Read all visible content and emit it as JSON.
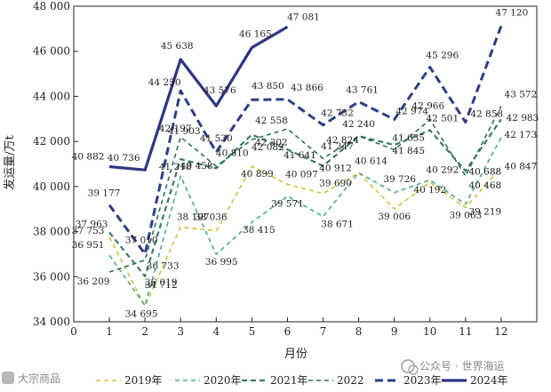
{
  "chart_data": {
    "type": "line",
    "title": "",
    "xlabel": "月份",
    "ylabel": "发运量/万t",
    "xlim": [
      0,
      13
    ],
    "ylim": [
      34000,
      48000
    ],
    "x_ticks": [
      0,
      1,
      2,
      3,
      4,
      5,
      6,
      7,
      8,
      9,
      10,
      11,
      12
    ],
    "y_ticks": [
      34000,
      36000,
      38000,
      40000,
      42000,
      44000,
      46000,
      48000
    ],
    "y_tick_labels": [
      "34 000",
      "36 000",
      "38 000",
      "40 000",
      "42 000",
      "44 000",
      "46 000",
      "48 000"
    ],
    "series": [
      {
        "name": "2019年",
        "color": "#c8c43a",
        "values": [
          37753,
          34695,
          38197,
          38036,
          40899,
          40097,
          39690,
          40614,
          39006,
          40192,
          39063,
          40847
        ],
        "labels": [
          "37 753",
          "34 695",
          "38 197",
          "38 036",
          "40 899",
          "40 097",
          "39 690",
          "40 614",
          "39 006",
          "40 192",
          "39 063",
          "40 847"
        ]
      },
      {
        "name": "2020年",
        "color": "#4caa86",
        "values": [
          36951,
          34712,
          40458,
          36995,
          38415,
          39571,
          38671,
          40614,
          39726,
          40292,
          39219,
          42173
        ],
        "labels": [
          "36 951",
          "34 712",
          "40 458",
          "36 995",
          "38 415",
          "39 571",
          "38 671",
          "",
          "39 726",
          "40 292",
          "39 219",
          "42 173"
        ]
      },
      {
        "name": "2021年",
        "color": "#3a7b63",
        "values": [
          37963,
          36019,
          41218,
          40810,
          42302,
          41641,
          40912,
          42240,
          41845,
          42501,
          40688,
          42983
        ],
        "labels": [
          "37 963",
          "36 019",
          "41 218",
          "40 810",
          "42 302",
          "41 641",
          "40 912",
          "42 240",
          "41 845",
          "42 501",
          "40 688",
          "42 983"
        ]
      },
      {
        "name": "2022",
        "color": "#2e6e63",
        "values": [
          36209,
          36733,
          42197,
          40899,
          42082,
          42558,
          41247,
          42240,
          41635,
          42966,
          40468,
          43572
        ],
        "labels": [
          "36 209",
          "36 733",
          "42 197",
          "",
          "42 082",
          "42 558",
          "41 247",
          "",
          "41 635",
          "42 966",
          "40 468",
          "43 572"
        ]
      },
      {
        "name": "2023年",
        "color": "#2d3f84",
        "values": [
          39177,
          37010,
          44250,
          41530,
          43850,
          43866,
          42732,
          43761,
          42974,
          45296,
          42858,
          47120
        ],
        "labels": [
          "39 177",
          "37 010",
          "44 250",
          "41 530",
          "43 850",
          "43 866",
          "42 732",
          "43 761",
          "42 974",
          "45 296",
          "42 858",
          "47 120"
        ]
      },
      {
        "name": "2024年",
        "color": "#2e3580",
        "values": [
          40882,
          40736,
          45638,
          43576,
          46165,
          47081
        ],
        "labels": [
          "40 882",
          "40 736",
          "45 638",
          "43 576",
          "46 165",
          "47 081"
        ]
      }
    ],
    "legend": [
      "2019年",
      "2020年",
      "2021年",
      "2022",
      "2023年",
      "2024年"
    ],
    "extra_labels": [
      "41 903",
      "42 824"
    ]
  },
  "watermarks": {
    "left": "大宗商品",
    "right": "公众号 · 世界海运"
  }
}
